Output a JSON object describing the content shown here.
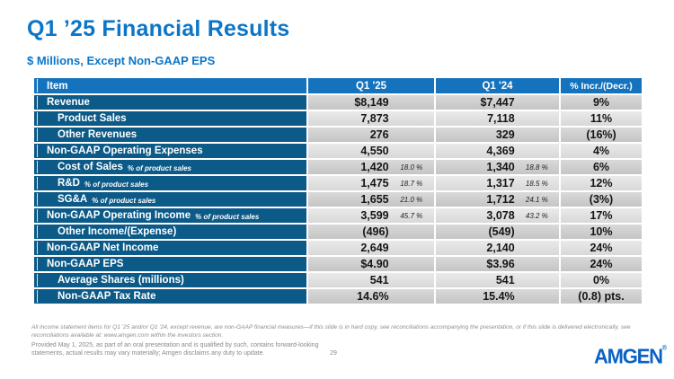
{
  "slide": {
    "title": "Q1 ’25 Financial Results",
    "subtitle": "$ Millions, Except Non-GAAP EPS",
    "page_number": "29",
    "logo_text": "AMGEN",
    "logo_registered": "®"
  },
  "table": {
    "columns": [
      "Item",
      "Q1 '25",
      "Q1 '24",
      "% Incr./(Decr.)"
    ],
    "rows": [
      {
        "label": "Revenue",
        "indent": 1,
        "note": "",
        "q1_25": "$8,149",
        "q1_25_pct": "",
        "q1_24": "$7,447",
        "q1_24_pct": "",
        "change": "9%"
      },
      {
        "label": "Product Sales",
        "indent": 2,
        "note": "",
        "q1_25": "7,873",
        "q1_25_pct": "",
        "q1_24": "7,118",
        "q1_24_pct": "",
        "change": "11%"
      },
      {
        "label": "Other Revenues",
        "indent": 2,
        "note": "",
        "q1_25": "276",
        "q1_25_pct": "",
        "q1_24": "329",
        "q1_24_pct": "",
        "change": "(16%)"
      },
      {
        "label": "Non-GAAP Operating Expenses",
        "indent": 1,
        "note": "",
        "q1_25": "4,550",
        "q1_25_pct": "",
        "q1_24": "4,369",
        "q1_24_pct": "",
        "change": "4%"
      },
      {
        "label": "Cost of Sales",
        "indent": 2,
        "note": "% of product sales",
        "q1_25": "1,420",
        "q1_25_pct": "18.0 %",
        "q1_24": "1,340",
        "q1_24_pct": "18.8 %",
        "change": "6%"
      },
      {
        "label": "R&D",
        "indent": 2,
        "note": "% of product sales",
        "q1_25": "1,475",
        "q1_25_pct": "18.7 %",
        "q1_24": "1,317",
        "q1_24_pct": "18.5 %",
        "change": "12%"
      },
      {
        "label": "SG&A",
        "indent": 2,
        "note": "% of product sales",
        "q1_25": "1,655",
        "q1_25_pct": "21.0 %",
        "q1_24": "1,712",
        "q1_24_pct": "24.1 %",
        "change": "(3%)"
      },
      {
        "label": "Non-GAAP Operating Income",
        "indent": 1,
        "note": "% of product sales",
        "q1_25": "3,599",
        "q1_25_pct": "45.7 %",
        "q1_24": "3,078",
        "q1_24_pct": "43.2 %",
        "change": "17%"
      },
      {
        "label": "Other Income/(Expense)",
        "indent": 2,
        "note": "",
        "q1_25": "(496)",
        "q1_25_pct": "",
        "q1_24": "(549)",
        "q1_24_pct": "",
        "change": "10%"
      },
      {
        "label": "Non-GAAP Net Income",
        "indent": 1,
        "note": "",
        "q1_25": "2,649",
        "q1_25_pct": "",
        "q1_24": "2,140",
        "q1_24_pct": "",
        "change": "24%"
      },
      {
        "label": "Non-GAAP EPS",
        "indent": 1,
        "note": "",
        "q1_25": "$4.90",
        "q1_25_pct": "",
        "q1_24": "$3.96",
        "q1_24_pct": "",
        "change": "24%"
      },
      {
        "label": "Average Shares (millions)",
        "indent": 2,
        "note": "",
        "q1_25": "541",
        "q1_25_pct": "",
        "q1_24": "541",
        "q1_24_pct": "",
        "change": "0%"
      },
      {
        "label": "Non-GAAP Tax Rate",
        "indent": 2,
        "note": "",
        "q1_25": "14.6%",
        "q1_25_pct": "",
        "q1_24": "15.4%",
        "q1_24_pct": "",
        "change": "(0.8) pts."
      }
    ]
  },
  "footnotes": {
    "reconciliation": "All income statement items for Q1 '25 and/or Q1 '24, except revenue, are non-GAAP financial measures—if this slide is in hard copy, see reconciliations accompanying the presentation, or if this slide is delivered electronically, see reconciliations available at: www.amgen.com within the investors section.",
    "forward_looking": "Provided May 1, 2025, as part of an oral presentation and is qualified by such, contains forward-looking statements, actual results may vary materially; Amgen disclaims any duty to update."
  },
  "colors": {
    "title_blue": "#0B76C8",
    "header_blue": "#1573BE",
    "row_label_blue": "#0C5A88",
    "logo_blue": "#0B62C5",
    "cell_gray_dark": "#CBCBCB",
    "cell_gray_light": "#E0E0E0"
  }
}
